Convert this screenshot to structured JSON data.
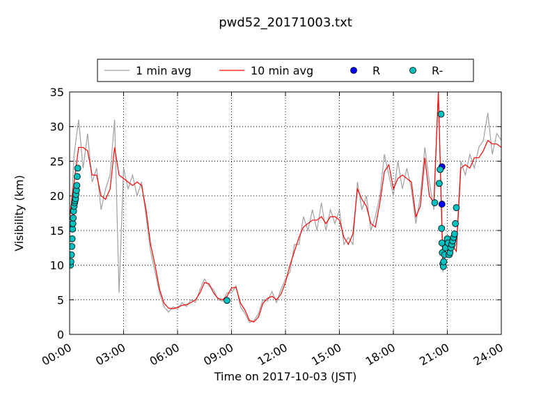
{
  "chart_data": {
    "type": "line",
    "title": "pwd52_20171003.txt",
    "xlabel": "Time on 2017-10-03 (JST)",
    "ylabel": "Visibility (km)",
    "x": [
      0,
      0.25,
      0.5,
      0.75,
      1,
      1.25,
      1.5,
      1.75,
      2,
      2.25,
      2.5,
      2.75,
      3,
      3.25,
      3.5,
      3.75,
      4,
      4.25,
      4.5,
      4.75,
      5,
      5.25,
      5.5,
      5.75,
      6,
      6.25,
      6.5,
      6.75,
      7,
      7.25,
      7.5,
      7.75,
      8,
      8.25,
      8.5,
      8.75,
      9,
      9.25,
      9.5,
      9.75,
      10,
      10.25,
      10.5,
      10.75,
      11,
      11.25,
      11.5,
      11.75,
      12,
      12.25,
      12.5,
      12.75,
      13,
      13.25,
      13.5,
      13.75,
      14,
      14.25,
      14.5,
      14.75,
      15,
      15.25,
      15.5,
      15.75,
      16,
      16.25,
      16.5,
      16.75,
      17,
      17.25,
      17.5,
      17.75,
      18,
      18.25,
      18.5,
      18.75,
      19,
      19.25,
      19.5,
      19.75,
      20,
      20.25,
      20.5,
      20.75,
      21,
      21.25,
      21.5,
      21.75,
      22,
      22.25,
      22.5,
      22.75,
      23,
      23.25,
      23.5,
      23.75,
      24
    ],
    "series": [
      {
        "name": "1 min avg",
        "color": "#a0a0a0",
        "style": "line",
        "values": [
          14,
          26,
          31,
          24,
          29,
          22,
          24,
          18,
          21,
          23,
          31,
          6,
          24,
          21,
          23,
          20,
          22,
          17,
          12,
          9,
          6,
          4,
          3.2,
          4,
          3.6,
          4.6,
          4,
          5,
          4.6,
          6.5,
          8,
          7,
          6.5,
          5,
          4.8,
          6,
          6,
          7,
          4,
          3,
          1.7,
          2,
          3,
          5,
          4.8,
          6.2,
          4.6,
          6.5,
          8,
          9,
          13,
          13,
          17,
          15,
          18,
          15,
          19,
          15,
          18,
          16,
          18,
          13,
          14,
          13,
          22,
          18,
          20,
          15,
          17,
          20,
          26,
          23,
          20,
          25,
          21,
          24,
          21,
          16,
          20,
          27,
          22,
          18,
          35,
          9,
          14,
          12,
          13,
          25,
          23,
          26,
          24,
          27,
          28,
          32,
          26,
          29,
          28
        ]
      },
      {
        "name": "10 min avg",
        "color": "#ff0000",
        "style": "line",
        "values": [
          17,
          22,
          27,
          27,
          26.5,
          23,
          23,
          20,
          19.5,
          21,
          27,
          23,
          22.5,
          22,
          21.5,
          22,
          21.5,
          18,
          13,
          10,
          6.5,
          4.5,
          3.8,
          3.7,
          3.9,
          4.2,
          4.3,
          4.6,
          5,
          6,
          7.5,
          7.3,
          6,
          5.2,
          5,
          5.5,
          6.7,
          6.8,
          4.5,
          3.5,
          2,
          1.8,
          2.5,
          4.5,
          5.2,
          5.5,
          5,
          5.8,
          7.5,
          10,
          12,
          14,
          15.5,
          16,
          16.5,
          16.5,
          17,
          16,
          17,
          17,
          16.5,
          14,
          13,
          14.5,
          21,
          19.5,
          18.5,
          16,
          15.5,
          19,
          23.5,
          24.5,
          21,
          22.5,
          23,
          22.5,
          22,
          17,
          18.5,
          25.5,
          20,
          19,
          35,
          11,
          13.5,
          13,
          12,
          24,
          24.5,
          24,
          25.5,
          25.5,
          26.5,
          28,
          27.5,
          27.5,
          27
        ]
      },
      {
        "name": "R",
        "color": "#0000ff",
        "style": "marker",
        "x": [
          20.7,
          20.7
        ],
        "values": [
          24.2,
          18.8
        ]
      },
      {
        "name": "R-",
        "color": "#00bfbf",
        "style": "marker",
        "x": [
          0.05,
          0.07,
          0.1,
          0.12,
          0.14,
          0.16,
          0.18,
          0.2,
          0.22,
          0.25,
          0.28,
          0.3,
          0.33,
          0.35,
          0.38,
          0.4,
          0.42,
          0.45,
          8.75,
          20.3,
          20.55,
          20.6,
          20.65,
          20.68,
          20.7,
          20.72,
          20.75,
          20.78,
          20.8,
          20.85,
          20.9,
          21.0,
          21.05,
          21.1,
          21.15,
          21.2,
          21.25,
          21.3,
          21.35,
          21.4,
          21.45,
          21.5
        ],
        "values": [
          10,
          10.5,
          11.5,
          12.7,
          13.8,
          15.2,
          16,
          16.8,
          17.8,
          18.5,
          19,
          19.3,
          19.6,
          20.2,
          20.8,
          21.5,
          22.8,
          24,
          4.9,
          19,
          21.8,
          23.8,
          31.8,
          15.3,
          13.2,
          11.8,
          10.2,
          9.8,
          10.5,
          11.5,
          12.5,
          13.8,
          13.2,
          11.5,
          11.8,
          12.5,
          13,
          13.5,
          14,
          14.5,
          16,
          18.3
        ]
      }
    ],
    "xlim": [
      0,
      24
    ],
    "xticks": [
      {
        "value": 0,
        "label": "00:00"
      },
      {
        "value": 3,
        "label": "03:00"
      },
      {
        "value": 6,
        "label": "06:00"
      },
      {
        "value": 9,
        "label": "09:00"
      },
      {
        "value": 12,
        "label": "12:00"
      },
      {
        "value": 15,
        "label": "15:00"
      },
      {
        "value": 18,
        "label": "18:00"
      },
      {
        "value": 21,
        "label": "21:00"
      },
      {
        "value": 24,
        "label": "24:00"
      }
    ],
    "ylim": [
      0,
      35
    ],
    "yticks": [
      0,
      5,
      10,
      15,
      20,
      25,
      30,
      35
    ],
    "grid": true,
    "legend": "upper center"
  }
}
